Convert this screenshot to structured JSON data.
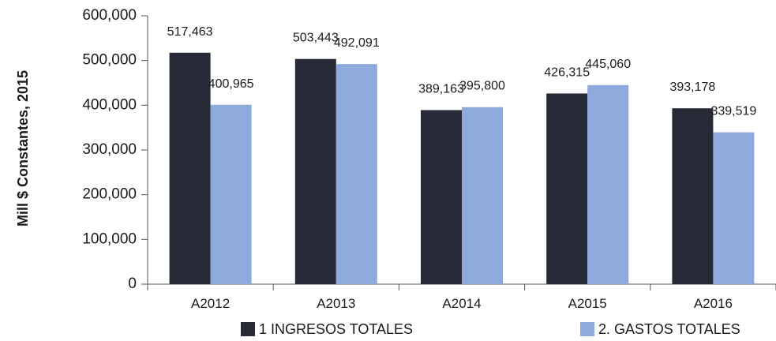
{
  "chart_data": {
    "type": "bar",
    "categories": [
      "A2012",
      "A2013",
      "A2014",
      "A2015",
      "A2016"
    ],
    "series": [
      {
        "name": "1  INGRESOS TOTALES",
        "values": [
          517463,
          503443,
          389163,
          426315,
          393178
        ],
        "labels": [
          "517,463",
          "503,443",
          "389,163",
          "426,315",
          "393,178"
        ],
        "color": "#252a36"
      },
      {
        "name": "2. GASTOS TOTALES",
        "values": [
          400965,
          492091,
          395800,
          445060,
          339519
        ],
        "labels": [
          "400,965",
          "492,091",
          "395,800",
          "445,060",
          "339,519"
        ],
        "color": "#8ea9db"
      }
    ],
    "ylabel": "Mill $ Constantes, 2015",
    "ylim": [
      0,
      600000
    ],
    "yticks": [
      0,
      100000,
      200000,
      300000,
      400000,
      500000,
      600000
    ],
    "ytick_labels": [
      "0",
      "100,000",
      "200,000",
      "300,000",
      "400,000",
      "500,000",
      "600,000"
    ],
    "grid": false,
    "legend_position": "bottom"
  }
}
